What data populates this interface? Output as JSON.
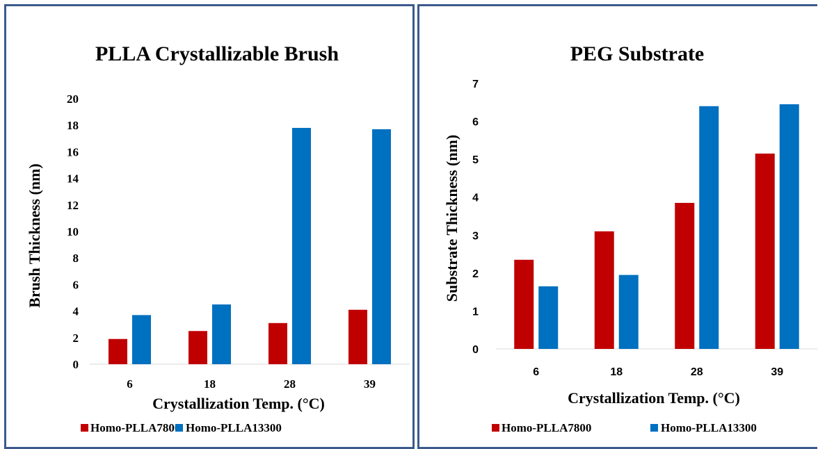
{
  "chart_data": [
    {
      "type": "bar",
      "title": "PLLA Crystallizable  Brush",
      "xlabel": "Crystallization  Temp. (°C)",
      "ylabel": "Brush Thickness (nm)",
      "ylim": [
        0,
        20
      ],
      "yticks": [
        0,
        2,
        4,
        6,
        8,
        10,
        12,
        14,
        16,
        18,
        20
      ],
      "categories": [
        "6",
        "18",
        "28",
        "39"
      ],
      "series": [
        {
          "name": "Homo-PLLA7800",
          "color": "#c00000",
          "values": [
            1.9,
            2.5,
            3.1,
            4.1
          ]
        },
        {
          "name": "Homo-PLLA13300",
          "color": "#0070c0",
          "values": [
            3.7,
            4.5,
            17.8,
            17.7
          ]
        }
      ],
      "grid": false,
      "legend": "bottom"
    },
    {
      "type": "bar",
      "title": "PEG Substrate",
      "xlabel": "Crystallization  Temp. (°C)",
      "ylabel": "Substrate Thickness (nm)",
      "ylim": [
        0,
        7
      ],
      "yticks": [
        0,
        1,
        2,
        3,
        4,
        5,
        6,
        7
      ],
      "categories": [
        "6",
        "18",
        "28",
        "39"
      ],
      "series": [
        {
          "name": "Homo-PLLA7800",
          "color": "#c00000",
          "values": [
            2.35,
            3.1,
            3.85,
            5.15
          ]
        },
        {
          "name": "Homo-PLLA13300",
          "color": "#0070c0",
          "values": [
            1.65,
            1.95,
            6.4,
            6.45
          ]
        }
      ],
      "grid": false,
      "legend": "bottom"
    }
  ]
}
